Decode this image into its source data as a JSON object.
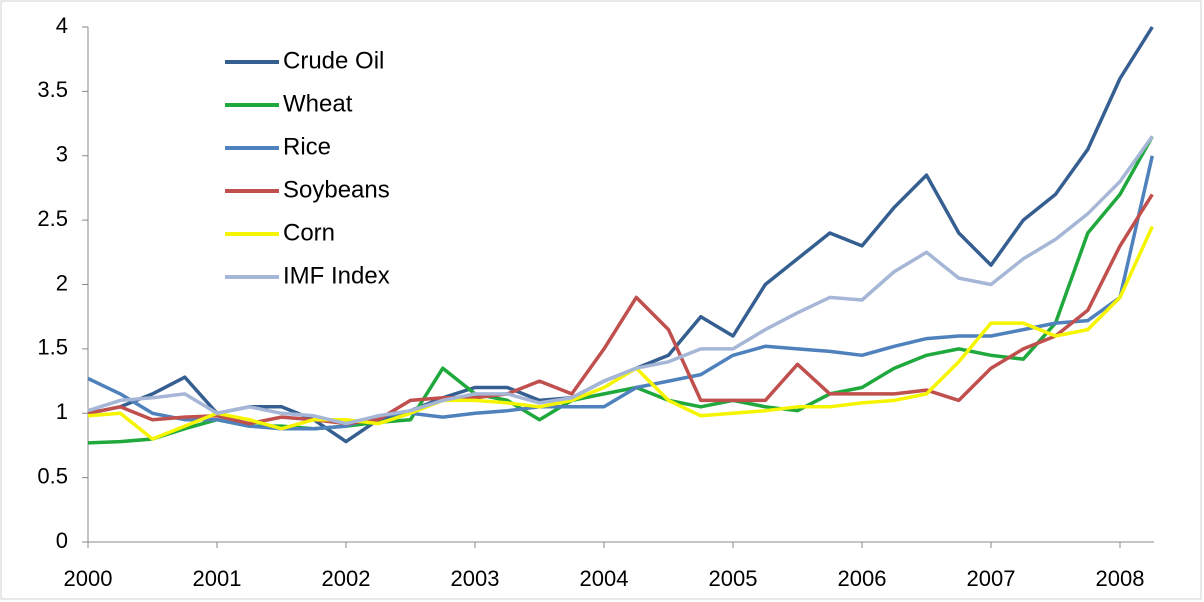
{
  "chart_data": {
    "type": "line",
    "x": [
      2000,
      2000.25,
      2000.5,
      2000.75,
      2001,
      2001.25,
      2001.5,
      2001.75,
      2002,
      2002.25,
      2002.5,
      2002.75,
      2003,
      2003.25,
      2003.5,
      2003.75,
      2004,
      2004.25,
      2004.5,
      2004.75,
      2005,
      2005.25,
      2005.5,
      2005.75,
      2006,
      2006.25,
      2006.5,
      2006.75,
      2007,
      2007.25,
      2007.5,
      2007.75,
      2008,
      2008.25
    ],
    "series": [
      {
        "name": "Crude Oil",
        "color": "#365f91",
        "values": [
          1.0,
          1.05,
          1.15,
          1.28,
          1.0,
          1.05,
          1.05,
          0.95,
          0.78,
          0.95,
          1.02,
          1.12,
          1.2,
          1.2,
          1.1,
          1.12,
          1.25,
          1.35,
          1.45,
          1.75,
          1.6,
          2.0,
          2.2,
          2.4,
          2.3,
          2.6,
          2.85,
          2.4,
          2.15,
          2.5,
          2.7,
          3.05,
          3.6,
          4.0
        ]
      },
      {
        "name": "Wheat",
        "color": "#1fa83c",
        "values": [
          0.77,
          0.78,
          0.8,
          0.88,
          0.95,
          0.9,
          0.9,
          0.88,
          0.9,
          0.93,
          0.95,
          1.35,
          1.15,
          1.1,
          0.95,
          1.1,
          1.15,
          1.2,
          1.1,
          1.05,
          1.1,
          1.05,
          1.02,
          1.15,
          1.2,
          1.35,
          1.45,
          1.5,
          1.45,
          1.42,
          1.7,
          2.4,
          2.7,
          3.15
        ]
      },
      {
        "name": "Rice",
        "color": "#4f81bd",
        "values": [
          1.27,
          1.15,
          1.0,
          0.95,
          0.95,
          0.9,
          0.88,
          0.88,
          0.9,
          0.98,
          1.0,
          0.97,
          1.0,
          1.02,
          1.05,
          1.05,
          1.05,
          1.2,
          1.25,
          1.3,
          1.45,
          1.52,
          1.5,
          1.48,
          1.45,
          1.52,
          1.58,
          1.6,
          1.6,
          1.65,
          1.7,
          1.72,
          1.9,
          3.0
        ]
      },
      {
        "name": "Soybeans",
        "color": "#c0504d",
        "values": [
          1.0,
          1.05,
          0.95,
          0.97,
          0.98,
          0.92,
          0.97,
          0.95,
          0.92,
          0.95,
          1.1,
          1.12,
          1.12,
          1.15,
          1.25,
          1.15,
          1.5,
          1.9,
          1.65,
          1.1,
          1.1,
          1.1,
          1.38,
          1.15,
          1.15,
          1.15,
          1.18,
          1.1,
          1.35,
          1.5,
          1.6,
          1.8,
          2.3,
          2.7
        ]
      },
      {
        "name": "Corn",
        "color": "#f5f500",
        "values": [
          0.98,
          1.0,
          0.8,
          0.9,
          1.0,
          0.95,
          0.88,
          0.95,
          0.95,
          0.92,
          1.0,
          1.1,
          1.1,
          1.08,
          1.05,
          1.1,
          1.2,
          1.35,
          1.1,
          0.98,
          1.0,
          1.02,
          1.05,
          1.05,
          1.08,
          1.1,
          1.15,
          1.4,
          1.7,
          1.7,
          1.6,
          1.65,
          1.9,
          2.45
        ]
      },
      {
        "name": "IMF Index",
        "color": "#a5b6d6",
        "values": [
          1.02,
          1.1,
          1.12,
          1.15,
          1.0,
          1.05,
          1.0,
          0.98,
          0.92,
          0.98,
          1.02,
          1.1,
          1.15,
          1.15,
          1.08,
          1.12,
          1.25,
          1.35,
          1.4,
          1.5,
          1.5,
          1.65,
          1.78,
          1.9,
          1.88,
          2.1,
          2.25,
          2.05,
          2.0,
          2.2,
          2.35,
          2.55,
          2.8,
          3.15
        ]
      }
    ],
    "xlim": [
      2000,
      2008.25
    ],
    "xticks": [
      2000,
      2001,
      2002,
      2003,
      2004,
      2005,
      2006,
      2007,
      2008
    ],
    "ylim": [
      0,
      4
    ],
    "yticks": [
      0,
      0.5,
      1,
      1.5,
      2,
      2.5,
      3,
      3.5,
      4
    ],
    "grid": false,
    "legend": "upper-left"
  }
}
